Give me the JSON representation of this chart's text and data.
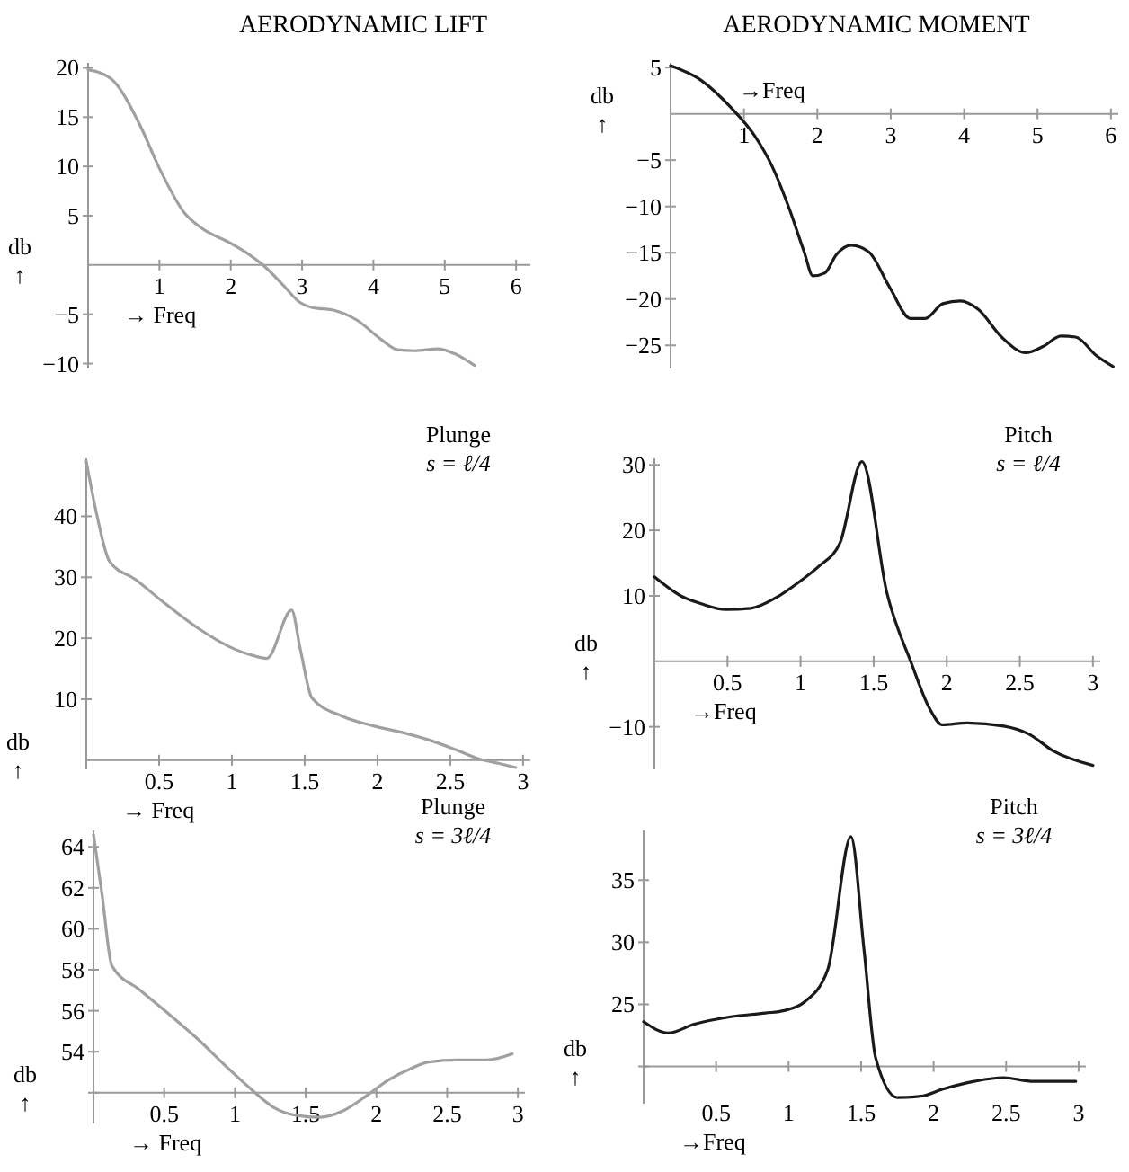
{
  "chart_data": [
    {
      "type": "line",
      "title": "AERODYNAMIC LIFT",
      "xlabel": "→ Freq",
      "ylabel": "db ↑",
      "xlim": [
        0,
        6.2
      ],
      "ylim": [
        -10.5,
        20.5
      ],
      "xticks": [
        1,
        2,
        3,
        4,
        5,
        6
      ],
      "yticks": [
        -10,
        -5,
        5,
        10,
        15,
        20
      ],
      "x": [
        0,
        0.32,
        0.72,
        1.0,
        1.36,
        1.6,
        2.0,
        2.25,
        2.45,
        2.73,
        2.97,
        3.13,
        3.45,
        3.77,
        4.1,
        4.34,
        4.58,
        4.9,
        5.14,
        5.42
      ],
      "series": [
        {
          "color": "#a0a0a0",
          "values": [
            19.8,
            18.9,
            14.3,
            9.8,
            5.2,
            3.7,
            2.2,
            1.1,
            0,
            -2.0,
            -3.8,
            -4.3,
            -4.6,
            -5.6,
            -7.5,
            -8.6,
            -8.7,
            -8.5,
            -9.0,
            -10.2
          ]
        }
      ]
    },
    {
      "type": "line",
      "title": "AERODYNAMIC MOMENT",
      "xlabel": "→Freq",
      "ylabel": "db ↑",
      "xlim": [
        0,
        6.1
      ],
      "ylim": [
        -27.5,
        5.5
      ],
      "xticks": [
        1,
        2,
        3,
        4,
        5,
        6
      ],
      "yticks": [
        -25,
        -20,
        -15,
        -10,
        -5,
        5
      ],
      "x": [
        0,
        0.42,
        0.82,
        1.14,
        1.38,
        1.62,
        1.82,
        1.94,
        2.1,
        2.26,
        2.46,
        2.7,
        2.99,
        3.27,
        3.47,
        3.71,
        3.95,
        4.19,
        4.51,
        4.84,
        5.08,
        5.32,
        5.52,
        5.8,
        6.03
      ],
      "series": [
        {
          "color": "#1a1a1a",
          "values": [
            5.2,
            3.6,
            0.7,
            -2.3,
            -5.6,
            -10.3,
            -14.9,
            -17.5,
            -17.2,
            -15.2,
            -14.2,
            -14.9,
            -18.8,
            -22.1,
            -22.1,
            -20.5,
            -20.2,
            -21.1,
            -24.1,
            -25.8,
            -25.1,
            -24.0,
            -24.1,
            -26.1,
            -27.3
          ]
        }
      ]
    },
    {
      "type": "line",
      "xlabel": "→ Freq",
      "ylabel": "db ↑",
      "annotations": [
        "Plunge",
        "s = ℓ/4"
      ],
      "xlim": [
        0,
        3.05
      ],
      "ylim": [
        -1.5,
        49.5
      ],
      "xticks": [
        0.5,
        1,
        1.5,
        2,
        2.5,
        3
      ],
      "yticks": [
        10,
        20,
        30,
        40
      ],
      "x": [
        0,
        0.07,
        0.16,
        0.34,
        0.52,
        0.77,
        1.02,
        1.14,
        1.24,
        1.41,
        1.47,
        1.55,
        1.76,
        1.96,
        2.21,
        2.37,
        2.54,
        2.7,
        2.83,
        2.95
      ],
      "series": [
        {
          "color": "#a0a0a0",
          "values": [
            49.0,
            40.5,
            32.6,
            29.6,
            26.1,
            21.6,
            18.2,
            17.2,
            16.7,
            24.6,
            18.2,
            10.2,
            7.2,
            5.7,
            4.3,
            3.2,
            1.7,
            0.2,
            -0.5,
            -1.2
          ]
        }
      ]
    },
    {
      "type": "line",
      "xlabel": "→Freq",
      "ylabel": "db ↑",
      "annotations": [
        "Pitch",
        "s = ℓ/4"
      ],
      "xlim": [
        0,
        3.05
      ],
      "ylim": [
        -16.5,
        31
      ],
      "xticks": [
        0.5,
        1,
        1.5,
        2,
        2.5,
        3
      ],
      "yticks": [
        -10,
        10,
        20,
        30
      ],
      "x": [
        0,
        0.18,
        0.32,
        0.49,
        0.66,
        0.83,
        1.0,
        1.13,
        1.27,
        1.42,
        1.59,
        1.76,
        1.88,
        1.97,
        2.14,
        2.39,
        2.56,
        2.73,
        3.0
      ],
      "series": [
        {
          "color": "#1a1a1a",
          "values": [
            12.9,
            10.0,
            8.8,
            7.9,
            8.1,
            9.7,
            12.3,
            14.6,
            18.1,
            30.5,
            10.5,
            -0.4,
            -7.1,
            -9.7,
            -9.4,
            -9.9,
            -11.1,
            -13.7,
            -15.9
          ]
        }
      ]
    },
    {
      "type": "line",
      "xlabel": "→ Freq",
      "ylabel": "db ↑",
      "annotations": [
        "Plunge",
        "s = 3ℓ/4"
      ],
      "xlim": [
        0,
        3.05
      ],
      "ylim": [
        50.5,
        64.8
      ],
      "xticks": [
        0.5,
        1,
        1.5,
        2,
        2.5,
        3
      ],
      "yticks": [
        {
          "value": 52,
          "label": null
        },
        54,
        56,
        58,
        60,
        62,
        64
      ],
      "x": [
        0,
        0.06,
        0.13,
        0.33,
        0.54,
        0.74,
        0.95,
        1.11,
        1.27,
        1.43,
        1.6,
        1.76,
        1.92,
        2.08,
        2.25,
        2.37,
        2.57,
        2.78,
        2.96
      ],
      "series": [
        {
          "color": "#a0a0a0",
          "values": [
            64.6,
            61.7,
            58.2,
            57.0,
            55.8,
            54.6,
            53.2,
            52.2,
            51.3,
            50.9,
            50.8,
            51.1,
            51.8,
            52.6,
            53.2,
            53.5,
            53.6,
            53.6,
            53.9
          ]
        }
      ]
    },
    {
      "type": "line",
      "xlabel": "→Freq",
      "ylabel": "db ↑",
      "annotations": [
        "Pitch",
        "s = 3ℓ/4"
      ],
      "xlim": [
        0,
        3.05
      ],
      "ylim": [
        17,
        39
      ],
      "xticks": [
        0.5,
        1,
        1.5,
        2,
        2.5,
        3
      ],
      "yticks": [
        {
          "value": 20,
          "label": null
        },
        25,
        30,
        35
      ],
      "x": [
        0,
        0.17,
        0.35,
        0.6,
        0.84,
        0.97,
        1.11,
        1.27,
        1.43,
        1.52,
        1.6,
        1.75,
        1.91,
        2.07,
        2.28,
        2.48,
        2.69,
        2.98
      ],
      "series": [
        {
          "color": "#1a1a1a",
          "values": [
            23.6,
            22.7,
            23.4,
            24.0,
            24.3,
            24.5,
            25.2,
            27.8,
            38.5,
            29.4,
            20.7,
            17.5,
            17.6,
            18.2,
            18.8,
            19.1,
            18.8,
            18.8
          ]
        }
      ]
    }
  ]
}
